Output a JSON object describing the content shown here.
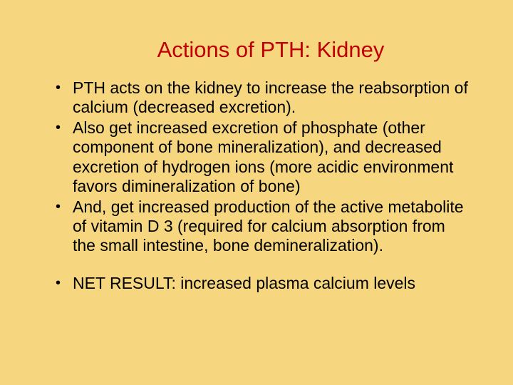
{
  "slide": {
    "background_color": "#f6d77f",
    "title": {
      "text": "Actions of PTH: Kidney",
      "color": "#c00000",
      "fontsize": 31
    },
    "body": {
      "fontsize": 23,
      "text_color": "#000000",
      "bullets": [
        "PTH acts on the kidney to increase the reabsorption of calcium (decreased excretion).",
        "Also get increased excretion of phosphate (other component of bone mineralization), and decreased excretion of hydrogen ions (more acidic environment favors dimineralization of bone)",
        "And, get increased production of the active metabolite of vitamin D 3 (required for calcium absorption from the small intestine, bone demineralization)."
      ],
      "result_bullet": "NET RESULT: increased plasma calcium levels"
    }
  }
}
